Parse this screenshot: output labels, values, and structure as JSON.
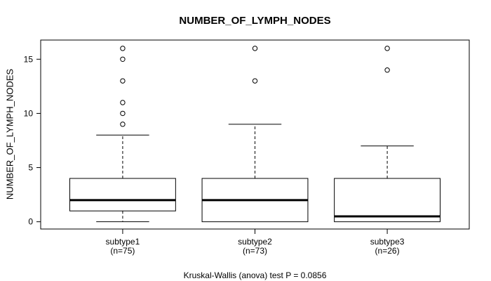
{
  "chart_data": {
    "type": "boxplot",
    "title": "NUMBER_OF_LYMPH_NODES",
    "ylabel": "NUMBER_OF_LYMPH_NODES",
    "xlabel": "",
    "annotation": "Kruskal-Wallis (anova) test P = 0.0856",
    "y_ticks": [
      0,
      5,
      10,
      15
    ],
    "ylim": [
      -0.67,
      16.77
    ],
    "xlim": [
      0.38,
      3.62
    ],
    "box_width": 0.8,
    "cap_width": 0.4,
    "grid": false,
    "legend": null,
    "line_color": "#000000",
    "box_fill": "#ffffff",
    "groups": [
      {
        "label": "subtype1",
        "sublabel": "(n=75)",
        "n": 75,
        "x": 1,
        "whisker_low": 0,
        "q1": 1,
        "median": 2,
        "q3": 4,
        "whisker_high": 8,
        "outliers": [
          9,
          10,
          11,
          13,
          15,
          16
        ]
      },
      {
        "label": "subtype2",
        "sublabel": "(n=73)",
        "n": 73,
        "x": 2,
        "whisker_low": 0,
        "q1": 0,
        "median": 2,
        "q3": 4,
        "whisker_high": 9,
        "outliers": [
          13,
          16
        ]
      },
      {
        "label": "subtype3",
        "sublabel": "(n=26)",
        "n": 26,
        "x": 3,
        "whisker_low": 0,
        "q1": 0,
        "median": 0.5,
        "q3": 4,
        "whisker_high": 7,
        "outliers": [
          14,
          16
        ]
      }
    ]
  }
}
